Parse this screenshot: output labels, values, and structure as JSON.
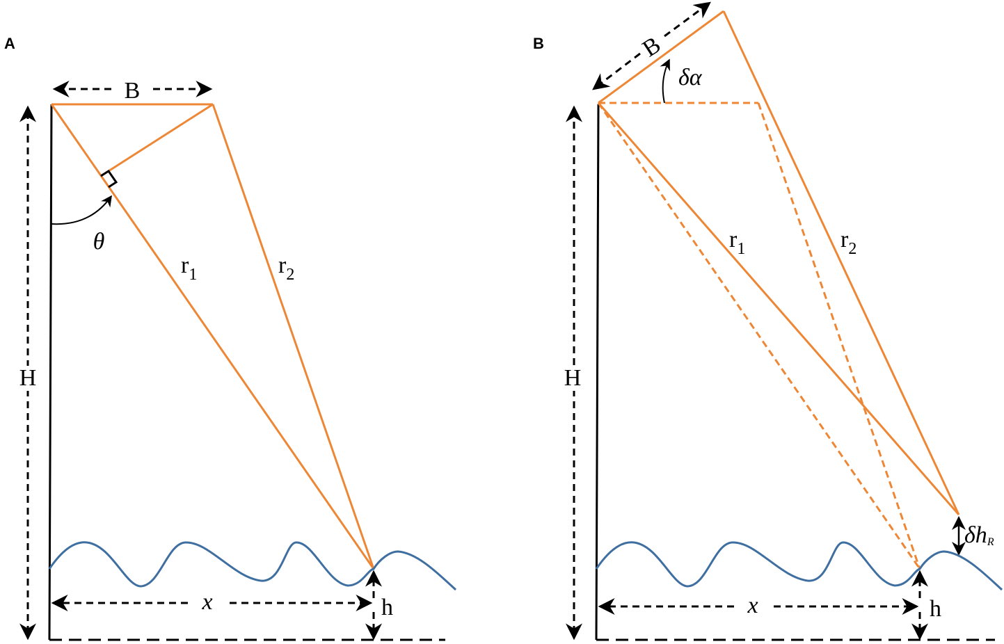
{
  "colors": {
    "orange": "#EE8735",
    "blue": "#3F6FA0",
    "black": "#000000"
  },
  "panel_a": {
    "label": "A",
    "baseline_label": "B",
    "height_label": "H",
    "angle_label": "θ",
    "r1_label": "r",
    "r1_sub": "1",
    "r2_label": "r",
    "r2_sub": "2",
    "x_label": "x",
    "h_label": "h"
  },
  "panel_b": {
    "label": "B",
    "baseline_label": "B",
    "height_label": "H",
    "angle_label": "δα",
    "r1_label": "r",
    "r1_sub": "1",
    "r2_label": "r",
    "r2_sub": "2",
    "dh_label": "δh",
    "dh_sub": "R",
    "x_label": "x",
    "h_label": "h"
  }
}
